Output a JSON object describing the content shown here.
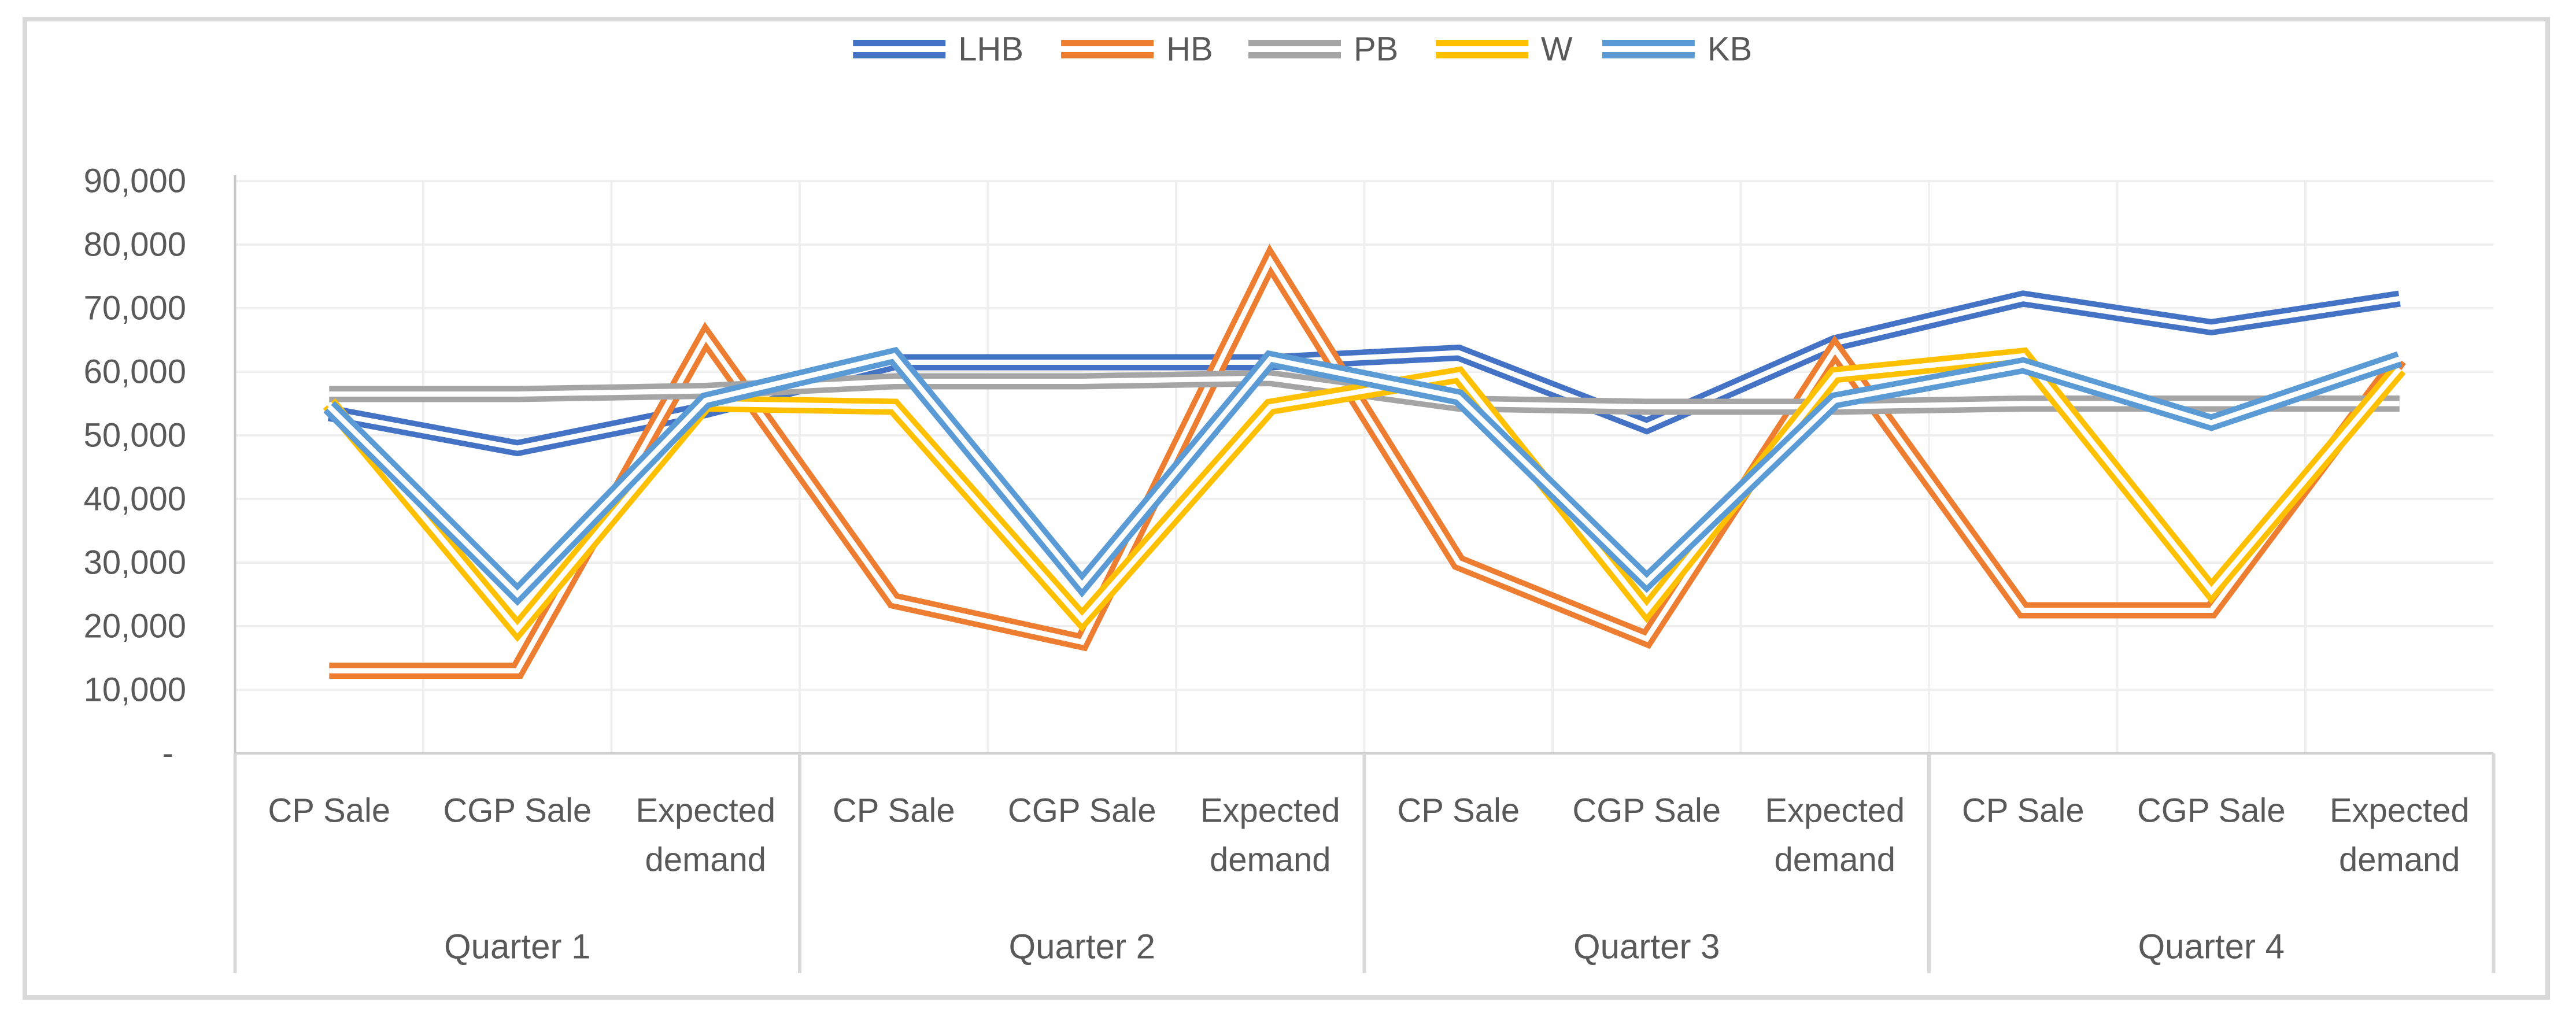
{
  "chart_data": {
    "type": "line",
    "title": "",
    "line_style": "double",
    "grid": true,
    "legend_position": "top",
    "legend_entries": [
      "LHB",
      "HB",
      "PB",
      "W",
      "KB"
    ],
    "y_axis": {
      "min": 0,
      "max": 90000,
      "step": 10000,
      "tick_labels": [
        "90,000",
        "80,000",
        "70,000",
        "60,000",
        "50,000",
        "40,000",
        "30,000",
        "20,000",
        "10,000",
        "-"
      ]
    },
    "x_axis": {
      "categories": [
        "CP Sale",
        "CGP Sale",
        "Expected demand",
        "CP Sale",
        "CGP Sale",
        "Expected demand",
        "CP Sale",
        "CGP Sale",
        "Expected demand",
        "CP Sale",
        "CGP Sale",
        "Expected demand"
      ],
      "group_labels": [
        "Quarter 1",
        "Quarter 2",
        "Quarter 3",
        "Quarter 4"
      ],
      "categories_per_group": 3
    },
    "series": [
      {
        "name": "LHB",
        "color": "#4472C4",
        "values": [
          53500,
          48000,
          54000,
          61500,
          61500,
          61500,
          63000,
          51500,
          64500,
          71500,
          67000,
          71500
        ]
      },
      {
        "name": "HB",
        "color": "#ED7D31",
        "values": [
          13000,
          13000,
          65500,
          24000,
          17500,
          77500,
          30000,
          18000,
          63500,
          22500,
          22500,
          62000
        ]
      },
      {
        "name": "PB",
        "color": "#A5A5A5",
        "values": [
          56500,
          56500,
          57000,
          58500,
          58500,
          59000,
          55000,
          54500,
          54500,
          55000,
          55000,
          55000
        ]
      },
      {
        "name": "W",
        "color": "#FFC000",
        "values": [
          55000,
          19500,
          55000,
          54500,
          21000,
          54500,
          59500,
          22500,
          59500,
          62500,
          25500,
          60500
        ]
      },
      {
        "name": "KB",
        "color": "#5B9BD5",
        "values": [
          54500,
          25000,
          55500,
          62500,
          26500,
          62000,
          56000,
          27000,
          55500,
          61000,
          52000,
          62000
        ]
      }
    ]
  },
  "colors": {
    "background": "#FFFFFF",
    "text": "#595959",
    "gridline": "#EFEFEF",
    "axis_line": "#D0D0D0",
    "axis_spine": "#C9C9C9",
    "separator": "#D9D9D9",
    "frame_border": "#D9D9D9"
  }
}
